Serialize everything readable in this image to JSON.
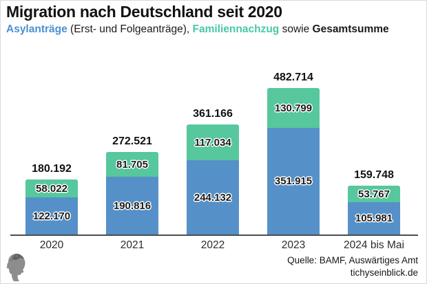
{
  "header": {
    "title": "Migration nach Deutschland seit 2020",
    "subtitle_segments": [
      {
        "text": "Asylanträge",
        "color": "#4a90d2",
        "bold": true
      },
      {
        "text": " (Erst- und Folgeanträge), ",
        "color": "#1a1a1a",
        "bold": false
      },
      {
        "text": "Familiennachzug",
        "color": "#48c8a4",
        "bold": true
      },
      {
        "text": " sowie ",
        "color": "#1a1a1a",
        "bold": false
      },
      {
        "text": "Gesamtsumme",
        "color": "#1a1a1a",
        "bold": true
      }
    ]
  },
  "chart_data": {
    "type": "bar",
    "stacked": true,
    "title": "Migration nach Deutschland seit 2020",
    "categories": [
      "2020",
      "2021",
      "2022",
      "2023",
      "2024 bis Mai"
    ],
    "series": [
      {
        "name": "Asylanträge (Erst- und Folgeanträge)",
        "color": "#5591c8",
        "values": [
          122170,
          190816,
          244132,
          351915,
          105981
        ],
        "labels": [
          "122.170",
          "190.816",
          "244.132",
          "351.915",
          "105.981"
        ]
      },
      {
        "name": "Familiennachzug",
        "color": "#57c79d",
        "values": [
          58022,
          81705,
          117034,
          130799,
          53767
        ],
        "labels": [
          "58.022",
          "81.705",
          "117.034",
          "130.799",
          "53.767"
        ]
      }
    ],
    "totals": {
      "name": "Gesamtsumme",
      "values": [
        180192,
        272521,
        361166,
        482714,
        159748
      ],
      "labels": [
        "180.192",
        "272.521",
        "361.166",
        "482.714",
        "159.748"
      ]
    },
    "ylim": [
      0,
      482714
    ],
    "grid": false,
    "legend_position": "inline-subtitle",
    "axis_color": "#4c4c4c"
  },
  "footer": {
    "source_line1": "Quelle: BAMF, Auswärtiges Amt",
    "source_line2": "tichyseinblick.de"
  }
}
